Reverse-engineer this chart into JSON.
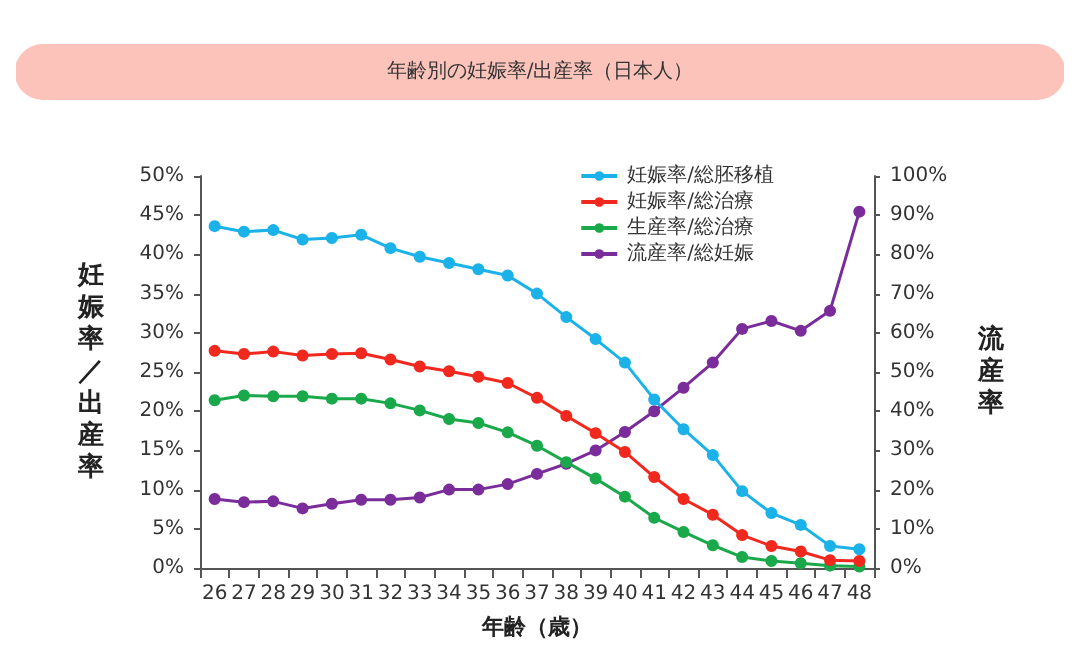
{
  "chart_data": {
    "type": "line",
    "title": "年齢別の妊娠率/出産率（日本人）",
    "xlabel": "年齢（歳）",
    "ylabel": "妊娠率／出産率",
    "y2label": "流産率",
    "categories": [
      "26",
      "27",
      "28",
      "29",
      "30",
      "31",
      "32",
      "33",
      "34",
      "35",
      "36",
      "37",
      "38",
      "39",
      "40",
      "41",
      "42",
      "43",
      "44",
      "45",
      "46",
      "47",
      "48"
    ],
    "series": [
      {
        "name": "妊娠率/総胚移植",
        "color": "#1ab2e8",
        "values": [
          43.6,
          42.9,
          43.1,
          41.9,
          42.1,
          42.5,
          40.8,
          39.7,
          38.9,
          38.1,
          37.3,
          35,
          32,
          29.2,
          26.2,
          21.5,
          17.7,
          14.4,
          9.8,
          7,
          5.5,
          2.8,
          2.4
        ]
      },
      {
        "name": "妊娠率/総治療",
        "color": "#f0281e",
        "values": [
          27.7,
          27.3,
          27.6,
          27.1,
          27.3,
          27.4,
          26.6,
          25.7,
          25.1,
          24.4,
          23.6,
          21.7,
          19.4,
          17.2,
          14.8,
          11.6,
          8.8,
          6.8,
          4.2,
          2.8,
          2.1,
          1,
          0.9
        ]
      },
      {
        "name": "生産率/総治療",
        "color": "#19a84a",
        "values": [
          21.4,
          22,
          21.9,
          21.9,
          21.6,
          21.6,
          21,
          20.1,
          19,
          18.5,
          17.3,
          15.6,
          13.5,
          11.4,
          9.1,
          6.4,
          4.6,
          2.9,
          1.4,
          0.9,
          0.6,
          0.3,
          0.2
        ]
      },
      {
        "name": "流産率/総妊娠",
        "color": "#7a2d9a",
        "axis": "y2",
        "values": [
          17.6,
          16.8,
          17,
          15.2,
          16.4,
          17.4,
          17.4,
          18,
          20,
          20,
          21.4,
          24,
          26.6,
          30,
          34.7,
          40,
          46,
          52.4,
          61,
          63,
          60.5,
          65.6,
          90.9
        ]
      }
    ],
    "ylim": [
      0,
      50
    ],
    "yticks": [
      {
        "value": 0,
        "label": "0%"
      },
      {
        "value": 5,
        "label": "5%"
      },
      {
        "value": 10,
        "label": "10%"
      },
      {
        "value": 15,
        "label": "15%"
      },
      {
        "value": 20,
        "label": "20%"
      },
      {
        "value": 25,
        "label": "25%"
      },
      {
        "value": 30,
        "label": "30%"
      },
      {
        "value": 35,
        "label": "35%"
      },
      {
        "value": 40,
        "label": "40%"
      },
      {
        "value": 45,
        "label": "45%"
      },
      {
        "value": 50,
        "label": "50%"
      }
    ],
    "y2lim": [
      0,
      100
    ],
    "y2ticks": [
      {
        "value": 0,
        "label": "0%"
      },
      {
        "value": 10,
        "label": "10%"
      },
      {
        "value": 20,
        "label": "20%"
      },
      {
        "value": 30,
        "label": "30%"
      },
      {
        "value": 40,
        "label": "40%"
      },
      {
        "value": 50,
        "label": "50%"
      },
      {
        "value": 60,
        "label": "60%"
      },
      {
        "value": 70,
        "label": "70%"
      },
      {
        "value": 80,
        "label": "80%"
      },
      {
        "value": 90,
        "label": "90%"
      },
      {
        "value": 100,
        "label": "100%"
      }
    ],
    "grid": false,
    "legend": "top right",
    "marker": "circle",
    "line_style": "solid"
  }
}
